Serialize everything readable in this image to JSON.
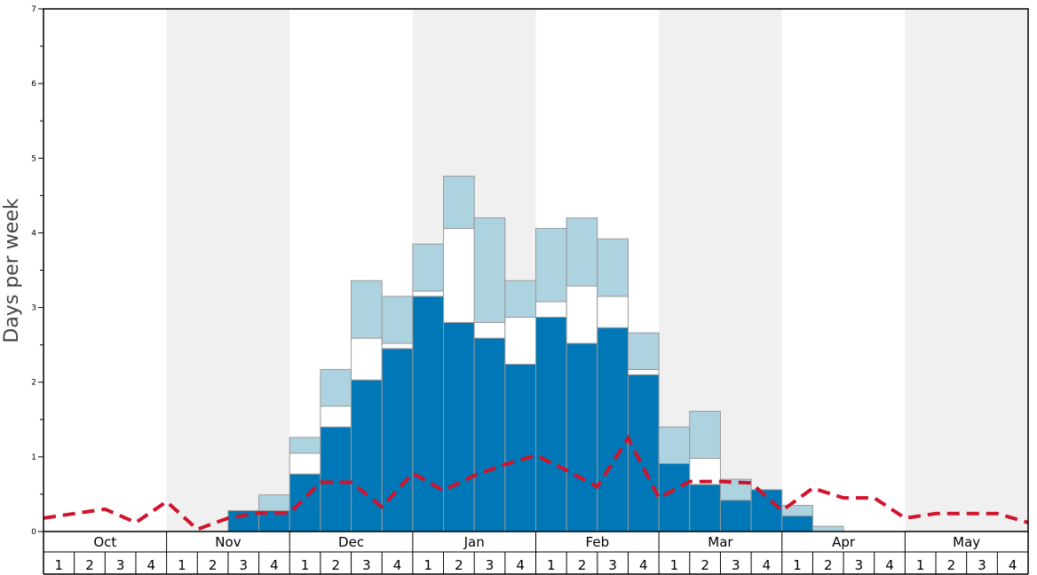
{
  "chart_data": {
    "type": "bar",
    "ylabel": "Days per week",
    "ylim": [
      0,
      7
    ],
    "y_ticks": [
      "0",
      "1",
      "2",
      "3",
      "4",
      "5",
      "6",
      "7"
    ],
    "months": [
      "Oct",
      "Nov",
      "Dec",
      "Jan",
      "Feb",
      "Mar",
      "Apr",
      "May"
    ],
    "week_labels": [
      "1",
      "2",
      "3",
      "4"
    ],
    "colors": {
      "dark": "#0077b6",
      "light": "#add3e0",
      "white": "#ffffff",
      "line": "#d0142c",
      "shade": "#f0f0f0",
      "bar_edge": "#999999"
    },
    "series": [
      {
        "key": "dark",
        "values": [
          0,
          0,
          0,
          0,
          0,
          0,
          0.28,
          0.28,
          0.77,
          1.4,
          2.03,
          2.45,
          3.15,
          2.8,
          2.59,
          2.24,
          2.87,
          2.52,
          2.73,
          2.1,
          0.91,
          0.63,
          0.42,
          0.56,
          0.21,
          0,
          0,
          0,
          0,
          0,
          0,
          0
        ]
      },
      {
        "key": "white",
        "values": [
          0,
          0,
          0,
          0,
          0,
          0,
          0,
          0,
          0.28,
          0.28,
          0.56,
          0.07,
          0.07,
          1.26,
          0.21,
          0.63,
          0.21,
          0.77,
          0.42,
          0.07,
          0,
          0.35,
          0,
          0,
          0,
          0,
          0,
          0,
          0,
          0,
          0,
          0
        ]
      },
      {
        "key": "light",
        "values": [
          0,
          0,
          0,
          0,
          0,
          0,
          0,
          0.21,
          0.21,
          0.49,
          0.77,
          0.63,
          0.63,
          0.7,
          1.4,
          0.49,
          0.98,
          0.91,
          0.77,
          0.49,
          0.49,
          0.63,
          0.28,
          0,
          0.14,
          0.07,
          0,
          0,
          0,
          0,
          0,
          0
        ]
      }
    ],
    "average_line": [
      0.18,
      0.24,
      0.3,
      0.12,
      0.4,
      0.03,
      0.18,
      0.25,
      0.25,
      0.66,
      0.66,
      0.33,
      0.78,
      0.55,
      0.75,
      0.9,
      1.02,
      0.82,
      0.6,
      1.25,
      0.45,
      0.67,
      0.67,
      0.65,
      0.28,
      0.58,
      0.45,
      0.45,
      0.18,
      0.24,
      0.24,
      0.24,
      0.12
    ]
  }
}
